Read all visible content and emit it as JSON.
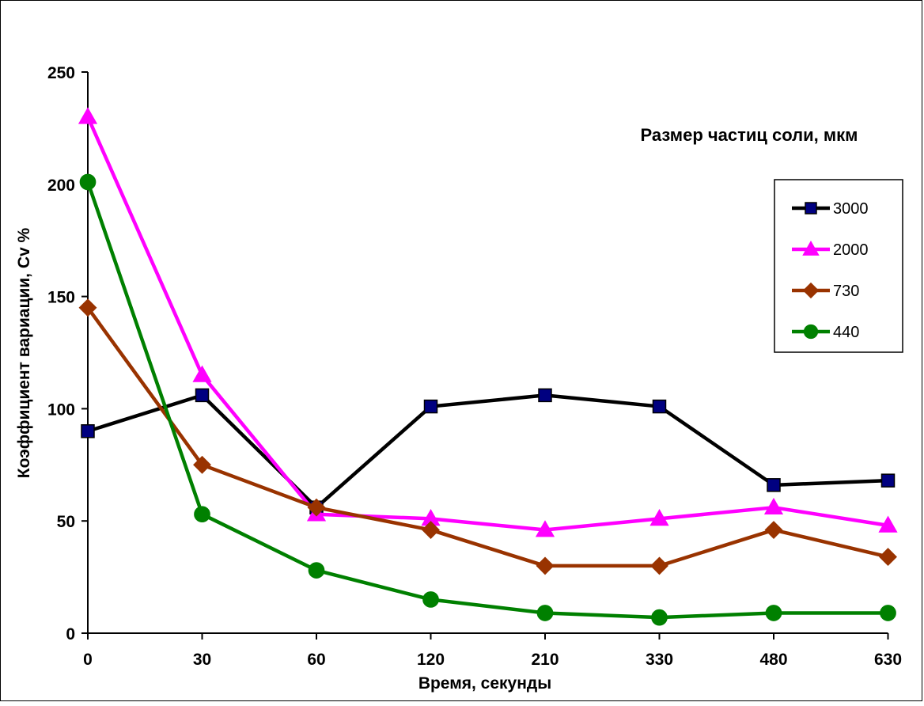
{
  "chart_data": {
    "type": "line",
    "title": "",
    "legend_title": "Размер частиц соли, мкм",
    "xlabel": "Время, секунды",
    "ylabel": "Коэффициент вариации, Cv %",
    "categories": [
      "0",
      "30",
      "60",
      "120",
      "210",
      "330",
      "480",
      "630"
    ],
    "ylim": [
      0,
      250
    ],
    "yticks": [
      0,
      50,
      100,
      150,
      200,
      250
    ],
    "grid": false,
    "legend_position": "right",
    "series": [
      {
        "name": "3000",
        "color": "#000000",
        "marker_fill": "#000080",
        "marker": "square",
        "values": [
          90,
          106,
          56,
          101,
          106,
          101,
          66,
          68
        ]
      },
      {
        "name": "2000",
        "color": "#ff00ff",
        "marker_fill": "#ff00ff",
        "marker": "triangle",
        "values": [
          230,
          115,
          53,
          51,
          46,
          51,
          56,
          48
        ]
      },
      {
        "name": "730",
        "color": "#993300",
        "marker_fill": "#993300",
        "marker": "diamond",
        "values": [
          145,
          75,
          56,
          46,
          30,
          30,
          46,
          34
        ]
      },
      {
        "name": "440",
        "color": "#008000",
        "marker_fill": "#008000",
        "marker": "circle",
        "values": [
          201,
          53,
          28,
          15,
          9,
          7,
          9,
          9
        ]
      }
    ]
  }
}
